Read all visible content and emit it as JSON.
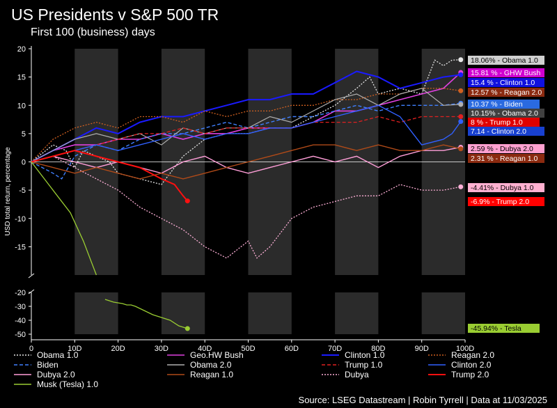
{
  "title": "US Presidents v S&P 500 TR",
  "subtitle": "First 100 (business) days",
  "source": "Source: LSEG Datastream | Robin Tyrrell | Data at 11/03/2025",
  "chart_data": {
    "type": "line",
    "ylabel": "USD total return, percentage",
    "x_ticks": [
      "0",
      "10D",
      "20D",
      "30D",
      "40D",
      "50D",
      "60D",
      "70D",
      "80D",
      "90D",
      "100D"
    ],
    "xlim": [
      0,
      100
    ],
    "upper_y_ticks": [
      "20",
      "15",
      "10",
      "5",
      "0",
      "-5",
      "-10",
      "-15"
    ],
    "lower_y_ticks": [
      "-20",
      "-30",
      "-40",
      "-50"
    ],
    "upper_ylim": [
      -20,
      20
    ],
    "lower_ylim": [
      -50,
      -20
    ],
    "shaded_bands": [
      [
        10,
        20
      ],
      [
        30,
        40
      ],
      [
        50,
        60
      ],
      [
        70,
        80
      ],
      [
        90,
        100
      ]
    ],
    "series": [
      {
        "name": "Obama 1.0",
        "color": "#e8e8e8",
        "dash": "2,2",
        "width": 1.3,
        "end_label": "18.06% - Obama 1.0",
        "end_value": 18.06,
        "label_bg": "#d0d0d0",
        "label_fg": "#000",
        "x": [
          0,
          5,
          8,
          10,
          12,
          15,
          18,
          20,
          25,
          30,
          35,
          40,
          45,
          50,
          55,
          60,
          65,
          70,
          75,
          78,
          80,
          85,
          90,
          93,
          95,
          97,
          99
        ],
        "y": [
          0,
          3,
          2,
          -1,
          2,
          1,
          0,
          -2,
          -3,
          -4,
          1,
          4,
          5,
          5,
          6,
          6,
          8,
          10,
          13,
          15,
          12,
          13,
          12,
          18,
          17,
          18,
          18.06
        ]
      },
      {
        "name": "Geo.HW Bush",
        "color": "#e040e0",
        "dash": "",
        "width": 1.6,
        "end_label": "15.81 % - GHW Bush",
        "end_value": 15.81,
        "label_bg": "#d000d0",
        "label_fg": "#fff",
        "x": [
          0,
          5,
          10,
          15,
          20,
          25,
          30,
          35,
          40,
          45,
          50,
          55,
          60,
          65,
          70,
          75,
          80,
          85,
          90,
          95,
          99
        ],
        "y": [
          0,
          2,
          3,
          3,
          4,
          4,
          5,
          4,
          5,
          5,
          6,
          6,
          6,
          7,
          9,
          9,
          10,
          11,
          12,
          13,
          15.81
        ]
      },
      {
        "name": "Clinton 1.0",
        "color": "#1a1aff",
        "dash": "",
        "width": 2,
        "end_label": "15.4 % - Clinton 1.0",
        "end_value": 15.4,
        "label_bg": "#1010e0",
        "label_fg": "#fff",
        "x": [
          0,
          5,
          10,
          15,
          20,
          25,
          30,
          35,
          40,
          45,
          50,
          55,
          60,
          65,
          70,
          75,
          80,
          85,
          90,
          95,
          99
        ],
        "y": [
          0,
          2,
          4,
          6,
          5,
          7,
          8,
          8,
          9,
          10,
          11,
          11,
          12,
          12,
          14,
          16,
          15,
          13,
          14,
          15,
          15.4
        ]
      },
      {
        "name": "Reagan 2.0",
        "color": "#d06020",
        "dash": "2,2",
        "width": 1.3,
        "end_label": "12.57 % - Reagan 2.0",
        "end_value": 12.57,
        "label_bg": "#8b2a10",
        "label_fg": "#fff",
        "x": [
          0,
          5,
          10,
          15,
          20,
          25,
          30,
          35,
          40,
          45,
          50,
          55,
          60,
          65,
          70,
          75,
          80,
          85,
          90,
          95,
          99
        ],
        "y": [
          0,
          4,
          6,
          7,
          6,
          8,
          8,
          7,
          9,
          8,
          9,
          9,
          10,
          10,
          11,
          11,
          12,
          12,
          13,
          13,
          12.57
        ]
      },
      {
        "name": "Biden",
        "color": "#4080ff",
        "dash": "5,3",
        "width": 1.4,
        "end_label": "10.37 % - Biden",
        "end_value": 10.37,
        "label_bg": "#2a6ae0",
        "label_fg": "#fff",
        "x": [
          0,
          5,
          7,
          10,
          15,
          20,
          25,
          30,
          35,
          40,
          45,
          50,
          55,
          60,
          65,
          70,
          75,
          80,
          85,
          90,
          95,
          99
        ],
        "y": [
          0,
          -2,
          -3,
          1,
          3,
          2,
          4,
          5,
          5,
          6,
          7,
          6,
          7,
          8,
          8,
          9,
          10,
          9,
          10,
          10,
          10,
          10.37
        ]
      },
      {
        "name": "Obama 2.0",
        "color": "#b0b0b0",
        "dash": "",
        "width": 1.2,
        "end_label": "10.15% - Obama 2.0",
        "end_value": 10.15,
        "label_bg": "#404040",
        "label_fg": "#fff",
        "x": [
          0,
          5,
          10,
          15,
          20,
          25,
          30,
          35,
          40,
          45,
          50,
          55,
          60,
          65,
          70,
          75,
          80,
          85,
          90,
          95,
          99
        ],
        "y": [
          0,
          2,
          4,
          5,
          4,
          5,
          3,
          6,
          5,
          6,
          6,
          8,
          7,
          9,
          11,
          12,
          10,
          12,
          13,
          10,
          10.15
        ]
      },
      {
        "name": "Trump 1.0",
        "color": "#e02020",
        "dash": "5,3",
        "width": 1.3,
        "end_label": "8 % - Trump 1.0",
        "end_value": 8,
        "label_bg": "#e00000",
        "label_fg": "#fff",
        "x": [
          0,
          5,
          10,
          15,
          20,
          25,
          30,
          35,
          40,
          45,
          50,
          55,
          60,
          65,
          70,
          75,
          80,
          85,
          90,
          95,
          99
        ],
        "y": [
          0,
          1,
          2,
          3,
          4,
          5,
          5,
          6,
          5,
          6,
          6,
          6,
          6,
          7,
          7,
          7,
          8,
          7,
          8,
          8,
          8
        ]
      },
      {
        "name": "Clinton 2.0",
        "color": "#3060ff",
        "dash": "",
        "width": 1.4,
        "end_label": "7.14 - Clinton 2.0",
        "end_value": 7.14,
        "label_bg": "#1840d0",
        "label_fg": "#fff",
        "x": [
          0,
          5,
          10,
          15,
          20,
          25,
          30,
          35,
          40,
          45,
          50,
          55,
          60,
          65,
          70,
          75,
          80,
          85,
          88,
          90,
          95,
          97,
          99
        ],
        "y": [
          0,
          1,
          2,
          3,
          2,
          3,
          4,
          5,
          4,
          5,
          5,
          6,
          6,
          7,
          8,
          9,
          10,
          8,
          5,
          3,
          4,
          5,
          7.14
        ]
      },
      {
        "name": "Dubya 2.0",
        "color": "#ff9ed8",
        "dash": "",
        "width": 1.4,
        "end_label": "2.59 % - Dubya 2.0",
        "end_value": 2.59,
        "label_bg": "#ffa0d0",
        "label_fg": "#000",
        "x": [
          0,
          5,
          10,
          15,
          20,
          25,
          30,
          35,
          40,
          45,
          50,
          55,
          60,
          65,
          70,
          75,
          80,
          85,
          90,
          95,
          99
        ],
        "y": [
          0,
          1,
          0,
          -1,
          0,
          -1,
          -2,
          0,
          1,
          -1,
          -2,
          -1,
          0,
          1,
          0,
          1,
          -1,
          1,
          2,
          2,
          2.59
        ]
      },
      {
        "name": "Reagan 1.0",
        "color": "#b04a18",
        "dash": "",
        "width": 1.4,
        "end_label": "2.31 % - Reagan 1.0",
        "end_value": 2.31,
        "label_bg": "#8b2a10",
        "label_fg": "#fff",
        "x": [
          0,
          5,
          10,
          15,
          20,
          25,
          30,
          35,
          40,
          45,
          50,
          55,
          60,
          65,
          70,
          75,
          80,
          85,
          90,
          95,
          99
        ],
        "y": [
          0,
          -1,
          -2,
          -1,
          -2,
          -3,
          -2,
          -3,
          -2,
          -1,
          0,
          1,
          2,
          3,
          3,
          2,
          3,
          2,
          2,
          3,
          2.31
        ]
      },
      {
        "name": "Dubya",
        "color": "#ffb0d8",
        "dash": "2,2",
        "width": 1.3,
        "end_label": "-4.41% - Dubya 1.0",
        "end_value": -4.41,
        "label_bg": "#ffb0d0",
        "label_fg": "#000",
        "x": [
          0,
          5,
          10,
          15,
          20,
          25,
          30,
          35,
          40,
          45,
          50,
          52,
          55,
          60,
          65,
          70,
          75,
          80,
          85,
          90,
          95,
          99
        ],
        "y": [
          0,
          1,
          -1,
          -3,
          -5,
          -8,
          -10,
          -12,
          -15,
          -17,
          -14,
          -17,
          -15,
          -10,
          -8,
          -7,
          -6,
          -6,
          -4,
          -5,
          -5,
          -4.41
        ]
      },
      {
        "name": "Trump 2.0",
        "color": "#ff1010",
        "dash": "",
        "width": 2,
        "end_label": "-6.9% - Trump 2.0",
        "end_value": -6.9,
        "label_bg": "#ff0000",
        "label_fg": "#fff",
        "x": [
          0,
          5,
          10,
          15,
          20,
          25,
          30,
          33,
          35,
          36
        ],
        "y": [
          0,
          1,
          2,
          1,
          0,
          -1,
          -3,
          -4,
          -6,
          -6.9
        ]
      },
      {
        "name": "Musk (Tesla) 1.0",
        "color": "#9acd32",
        "dash": "",
        "width": 1.3,
        "end_label": "-45.94% - Tesla",
        "end_value": -45.94,
        "label_bg": "#9acd32",
        "label_fg": "#000",
        "x": [
          0,
          3,
          6,
          9,
          12,
          15,
          17,
          19,
          21,
          22,
          23,
          24,
          26,
          28,
          30,
          32,
          34,
          36
        ],
        "y": [
          0,
          -3,
          -6,
          -9,
          -14,
          -20,
          -25,
          -27,
          -28,
          -29,
          -29,
          -30,
          -33,
          -36,
          -38,
          -40,
          -44,
          -45.94
        ]
      }
    ]
  }
}
